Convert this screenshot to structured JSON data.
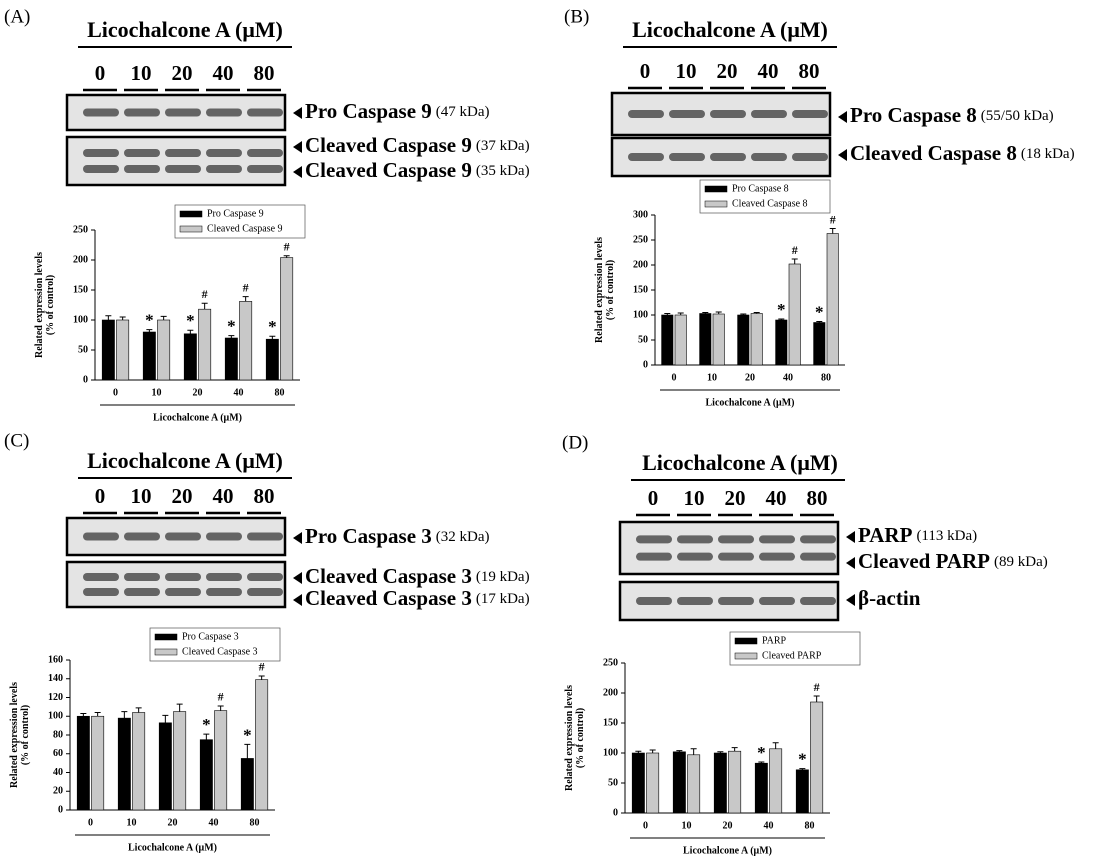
{
  "panels": [
    {
      "label": "(A)",
      "treatment": "Licochalcone A (μM)",
      "doses": [
        "0",
        "10",
        "20",
        "40",
        "80"
      ],
      "blots": [
        {
          "bands": [
            {
              "name": "Pro Caspase 9",
              "size": "(47 kDa)"
            }
          ]
        },
        {
          "bands": [
            {
              "name": "Cleaved Caspase 9",
              "size": "(37 kDa)"
            },
            {
              "name": "Cleaved Caspase 9",
              "size": "(35 kDa)"
            }
          ]
        }
      ]
    },
    {
      "label": "(B)",
      "treatment": "Licochalcone A (μM)",
      "doses": [
        "0",
        "10",
        "20",
        "40",
        "80"
      ],
      "blots": [
        {
          "bands": [
            {
              "name": "Pro Caspase 8",
              "size": "(55/50 kDa)"
            }
          ]
        },
        {
          "bands": [
            {
              "name": "Cleaved Caspase 8",
              "size": "(18 kDa)"
            }
          ]
        }
      ]
    },
    {
      "label": "(C)",
      "treatment": "Licochalcone A (μM)",
      "doses": [
        "0",
        "10",
        "20",
        "40",
        "80"
      ],
      "blots": [
        {
          "bands": [
            {
              "name": "Pro Caspase 3",
              "size": "(32 kDa)"
            }
          ]
        },
        {
          "bands": [
            {
              "name": "Cleaved Caspase 3",
              "size": "(19 kDa)"
            },
            {
              "name": "Cleaved Caspase 3",
              "size": "(17 kDa)"
            }
          ]
        }
      ]
    },
    {
      "label": "(D)",
      "treatment": "Licochalcone A (μM)",
      "doses": [
        "0",
        "10",
        "20",
        "40",
        "80"
      ],
      "blots": [
        {
          "bands": [
            {
              "name": "PARP",
              "size": "(113 kDa)"
            },
            {
              "name": "Cleaved PARP",
              "size": "(89 kDa)"
            }
          ]
        },
        {
          "bands": [
            {
              "name": "β-actin"
            }
          ]
        }
      ]
    }
  ],
  "chart_data": [
    {
      "type": "bar",
      "categories": [
        "0",
        "10",
        "20",
        "40",
        "80"
      ],
      "xlabel": "Licochalcone A (μM)",
      "ylabel": [
        "Related expression levels",
        "(% of control)"
      ],
      "ylim": [
        0,
        250
      ],
      "yticks": [
        0,
        50,
        100,
        150,
        200,
        250
      ],
      "series": [
        {
          "name": "Pro Caspase 9",
          "color": "#000000",
          "values": [
            100,
            80,
            77,
            70,
            68
          ],
          "errors": [
            7,
            4,
            6,
            4,
            5
          ],
          "sig": [
            null,
            "*",
            "*",
            "*",
            "*"
          ]
        },
        {
          "name": "Cleaved Caspase 9",
          "color": "#c8c8c8",
          "values": [
            100,
            100,
            118,
            131,
            204
          ],
          "errors": [
            5,
            6,
            10,
            8,
            3
          ],
          "sig": [
            null,
            null,
            "#",
            "#",
            "#"
          ]
        }
      ]
    },
    {
      "type": "bar",
      "categories": [
        "0",
        "10",
        "20",
        "40",
        "80"
      ],
      "xlabel": "Licochalcone A (μM)",
      "ylabel": [
        "Related expression levels",
        "(% of control)"
      ],
      "ylim": [
        0,
        300
      ],
      "yticks": [
        0,
        50,
        100,
        150,
        200,
        250,
        300
      ],
      "series": [
        {
          "name": "Pro Caspase 8",
          "color": "#000000",
          "values": [
            100,
            103,
            100,
            90,
            85
          ],
          "errors": [
            3,
            2,
            2,
            2,
            2
          ],
          "sig": [
            null,
            null,
            null,
            "*",
            "*"
          ]
        },
        {
          "name": "Cleaved Caspase 8",
          "color": "#c8c8c8",
          "values": [
            100,
            102,
            103,
            202,
            263
          ],
          "errors": [
            4,
            4,
            2,
            10,
            10
          ],
          "sig": [
            null,
            null,
            null,
            "#",
            "#"
          ]
        }
      ]
    },
    {
      "type": "bar",
      "categories": [
        "0",
        "10",
        "20",
        "40",
        "80"
      ],
      "xlabel": "Licochalcone A (μM)",
      "ylabel": [
        "Related expression levels",
        "(% of control)"
      ],
      "ylim": [
        0,
        160
      ],
      "yticks": [
        0,
        20,
        40,
        60,
        80,
        100,
        120,
        140,
        160
      ],
      "series": [
        {
          "name": "Pro Caspase 3",
          "color": "#000000",
          "values": [
            100,
            98,
            93,
            75,
            55
          ],
          "errors": [
            3,
            7,
            8,
            6,
            15
          ],
          "sig": [
            null,
            null,
            null,
            "*",
            "*"
          ]
        },
        {
          "name": "Cleaved Caspase 3",
          "color": "#c8c8c8",
          "values": [
            100,
            104,
            105,
            106,
            139
          ],
          "errors": [
            4,
            5,
            8,
            5,
            4
          ],
          "sig": [
            null,
            null,
            null,
            "#",
            "#"
          ]
        }
      ]
    },
    {
      "type": "bar",
      "categories": [
        "0",
        "10",
        "20",
        "40",
        "80"
      ],
      "xlabel": "Licochalcone A (μM)",
      "ylabel": [
        "Related expression levels",
        "(% of control)"
      ],
      "ylim": [
        0,
        250
      ],
      "yticks": [
        0,
        50,
        100,
        150,
        200,
        250
      ],
      "series": [
        {
          "name": "PARP",
          "color": "#000000",
          "values": [
            100,
            102,
            100,
            83,
            72
          ],
          "errors": [
            3,
            2,
            2,
            2,
            2
          ],
          "sig": [
            null,
            null,
            null,
            "*",
            "*"
          ]
        },
        {
          "name": "Cleaved PARP",
          "color": "#c8c8c8",
          "values": [
            100,
            97,
            103,
            107,
            185
          ],
          "errors": [
            5,
            10,
            6,
            10,
            10
          ],
          "sig": [
            null,
            null,
            null,
            null,
            "#"
          ]
        }
      ]
    }
  ]
}
